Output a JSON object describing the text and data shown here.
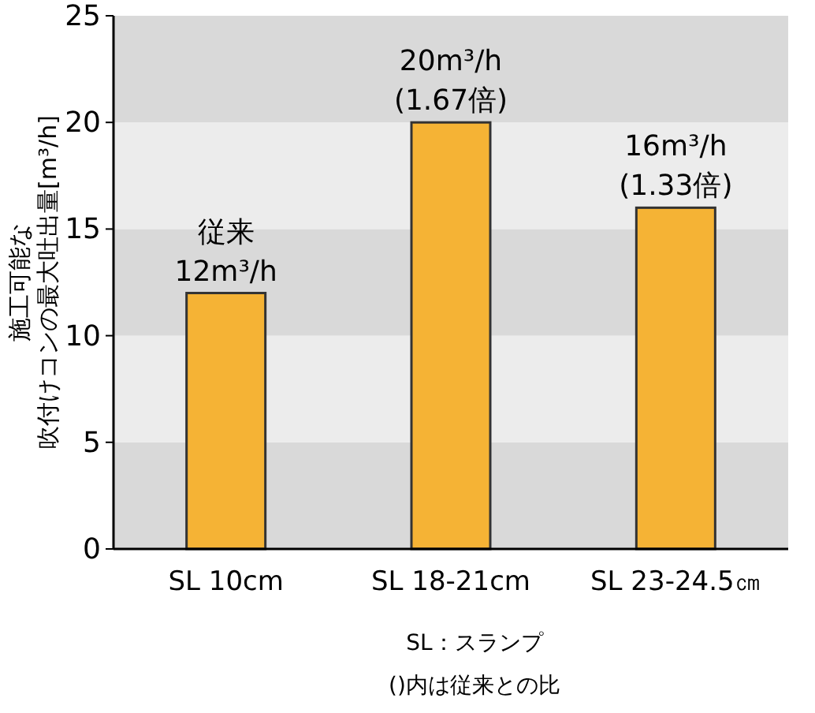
{
  "chart_data": {
    "type": "bar",
    "ylabel": [
      "施工可能な",
      "吹付けコンの最大吐出量[m³/h]"
    ],
    "categories": [
      "SL 10cm",
      "SL 18-21cm",
      "SL 23-24.5㎝"
    ],
    "values": [
      12,
      20,
      16
    ],
    "color": "#f5b335",
    "ylim": [
      0,
      25
    ],
    "yticks": [
      0,
      5,
      10,
      15,
      20,
      25
    ],
    "bands": [
      {
        "axis": "y",
        "from": 0,
        "to": 5,
        "color": "#d9d9d9"
      },
      {
        "axis": "y",
        "from": 5,
        "to": 10,
        "color": "#ececec"
      },
      {
        "axis": "y",
        "from": 10,
        "to": 15,
        "color": "#d9d9d9"
      },
      {
        "axis": "y",
        "from": 15,
        "to": 20,
        "color": "#ececec"
      },
      {
        "axis": "y",
        "from": 20,
        "to": 25,
        "color": "#d9d9d9"
      }
    ],
    "annotations": [
      {
        "text": "従来\n12m³/h",
        "x": "SL 10cm",
        "y": 12
      },
      {
        "text": "20m³/h\n(1.67倍)",
        "x": "SL 18-21cm",
        "y": 20
      },
      {
        "text": "16m³/h\n(1.33倍)",
        "x": "SL 23-24.5㎝",
        "y": 16
      },
      "SL：スランプ",
      "()内は従来との比"
    ]
  }
}
